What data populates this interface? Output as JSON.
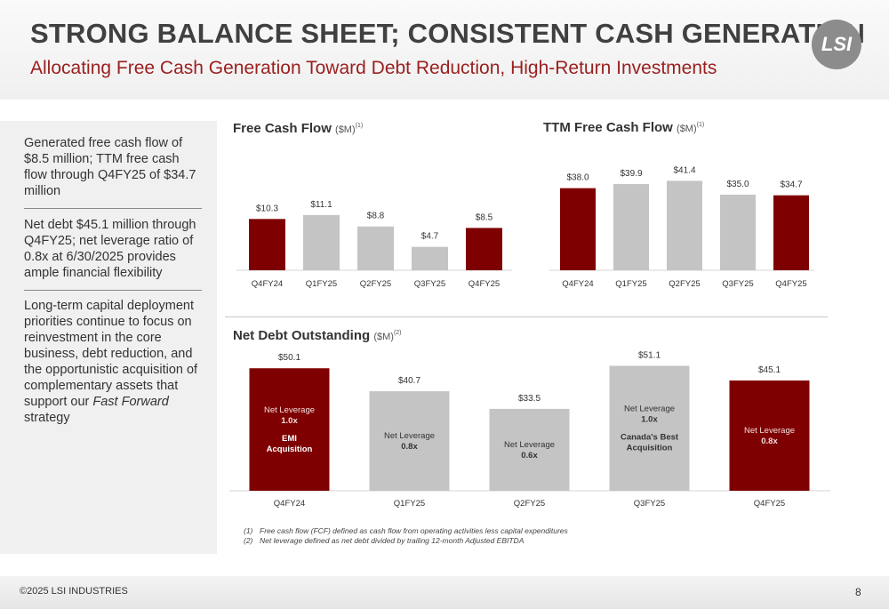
{
  "header": {
    "title": "STRONG BALANCE SHEET; CONSISTENT CASH GENERATION",
    "subtitle": "Allocating Free Cash Generation Toward Debt Reduction, High-Return Investments",
    "logo_text": "LSI"
  },
  "sidebar": {
    "items": [
      {
        "text": "Generated free cash flow of $8.5 million; TTM free cash flow through Q4FY25 of $34.7 million"
      },
      {
        "text": "Net debt $45.1 million through Q4FY25; net leverage ratio of 0.8x at 6/30/2025 provides ample financial flexibility"
      },
      {
        "text_before": "Long-term capital deployment priorities continue to focus on reinvestment in the core business, debt reduction, and the opportunistic acquisition of complementary assets that support our ",
        "emphasis": "Fast Forward",
        "text_after": " strategy"
      }
    ]
  },
  "colors": {
    "highlight": "#7f0000",
    "neutral": "#c4c4c4",
    "title_red": "#9a1f1f"
  },
  "charts": {
    "fcf": {
      "title": "Free Cash Flow",
      "unit": "($M)",
      "note": "(1)"
    },
    "ttm": {
      "title": "TTM Free Cash Flow",
      "unit": "($M)",
      "note": "(1)"
    },
    "netdebt": {
      "title": "Net Debt Outstanding",
      "unit": "($M)",
      "note": "(2)"
    }
  },
  "chart_data": [
    {
      "type": "bar",
      "title": "Free Cash Flow ($M)",
      "categories": [
        "Q4FY24",
        "Q1FY25",
        "Q2FY25",
        "Q3FY25",
        "Q4FY25"
      ],
      "values": [
        10.3,
        11.1,
        8.8,
        4.7,
        8.5
      ],
      "labels": [
        "$10.3",
        "$11.1",
        "$8.8",
        "$4.7",
        "$8.5"
      ],
      "highlight": [
        true,
        false,
        false,
        false,
        true
      ]
    },
    {
      "type": "bar",
      "title": "TTM Free Cash Flow ($M)",
      "categories": [
        "Q4FY24",
        "Q1FY25",
        "Q2FY25",
        "Q3FY25",
        "Q4FY25"
      ],
      "values": [
        38.0,
        39.9,
        41.4,
        35.0,
        34.7
      ],
      "labels": [
        "$38.0",
        "$39.9",
        "$41.4",
        "$35.0",
        "$34.7"
      ],
      "highlight": [
        true,
        false,
        false,
        false,
        true
      ]
    },
    {
      "type": "bar",
      "title": "Net Debt Outstanding ($M)",
      "categories": [
        "Q4FY24",
        "Q1FY25",
        "Q2FY25",
        "Q3FY25",
        "Q4FY25"
      ],
      "values": [
        50.1,
        40.7,
        33.5,
        51.1,
        45.1
      ],
      "labels": [
        "$50.1",
        "$40.7",
        "$33.5",
        "$51.1",
        "$45.1"
      ],
      "highlight": [
        true,
        false,
        false,
        false,
        true
      ],
      "annotations": [
        {
          "leverage_label": "Net Leverage",
          "leverage": "1.0x",
          "event": [
            "EMI",
            "Acquisition"
          ]
        },
        {
          "leverage_label": "Net Leverage",
          "leverage": "0.8x",
          "event": []
        },
        {
          "leverage_label": "Net Leverage",
          "leverage": "0.6x",
          "event": []
        },
        {
          "leverage_label": "Net Leverage",
          "leverage": "1.0x",
          "event": [
            "Canada's Best",
            "Acquisition"
          ]
        },
        {
          "leverage_label": "Net Leverage",
          "leverage": "0.8x",
          "event": []
        }
      ]
    }
  ],
  "footnotes": [
    {
      "num": "(1)",
      "text": "Free cash flow (FCF) defined as cash flow from operating activities less capital expenditures"
    },
    {
      "num": "(2)",
      "text": "Net leverage defined as net debt divided by trailing 12-month Adjusted EBITDA"
    }
  ],
  "footer": {
    "copyright": "©2025 LSI INDUSTRIES",
    "page": "8"
  }
}
